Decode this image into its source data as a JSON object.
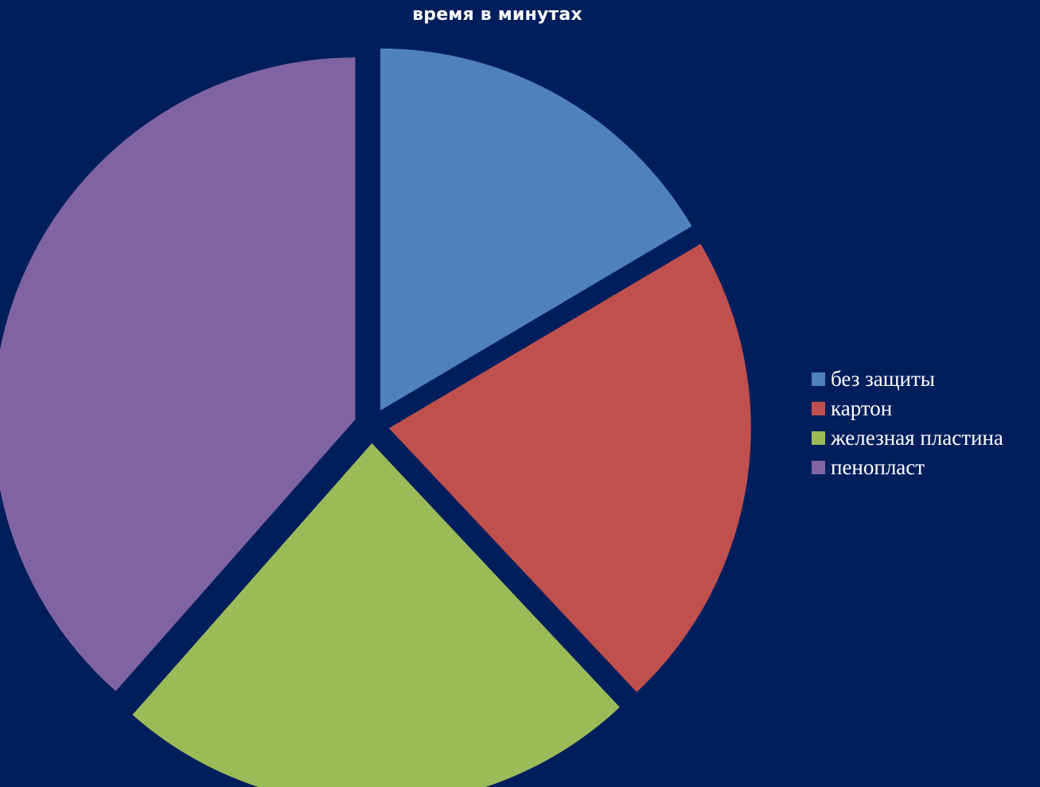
{
  "chart_data": {
    "type": "pie",
    "title": "время в минутах",
    "categories": [
      "без защиты",
      "картон",
      "железная пластина",
      "пенопласт"
    ],
    "values": [
      16.5,
      21.5,
      23.5,
      38.5
    ],
    "unit": "%",
    "colors": [
      "#4f81bd",
      "#c0504d",
      "#9bbb59",
      "#8064a2"
    ],
    "exploded": true,
    "start_angle_deg": 0,
    "direction": "clockwise",
    "legend_position": "right"
  },
  "theme": {
    "background": "#001e5c",
    "text_color": "#ffffff"
  }
}
